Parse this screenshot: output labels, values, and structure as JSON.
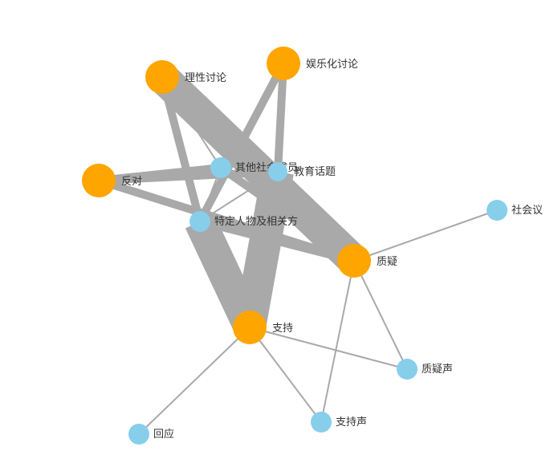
{
  "colors": {
    "major": "#FFA500",
    "minor": "#87CEEB",
    "edge": "#A9A9A9"
  },
  "nodes": [
    {
      "id": "n-lixing",
      "label": "理性讨论",
      "kind": "major"
    },
    {
      "id": "n-yule",
      "label": "娱乐化讨论",
      "kind": "major"
    },
    {
      "id": "n-fandui",
      "label": "反对",
      "kind": "major"
    },
    {
      "id": "n-zhiyi",
      "label": "质疑",
      "kind": "major"
    },
    {
      "id": "n-zhichi",
      "label": "支持",
      "kind": "major"
    },
    {
      "id": "n-qita",
      "label": "其他社会成员",
      "kind": "minor"
    },
    {
      "id": "n-jiaoyu",
      "label": "教育话题",
      "kind": "minor"
    },
    {
      "id": "n-teding",
      "label": "特定人物及相关方",
      "kind": "minor"
    },
    {
      "id": "n-shehui",
      "label": "社会议",
      "kind": "minor"
    },
    {
      "id": "n-zhiyisheng",
      "label": "质疑声",
      "kind": "minor"
    },
    {
      "id": "n-huiying",
      "label": "回应",
      "kind": "minor"
    },
    {
      "id": "n-zhichisheng",
      "label": "支持声",
      "kind": "minor"
    }
  ],
  "edges": [
    {
      "s": "n-teding",
      "t": "n-zhichi",
      "w": 3
    },
    {
      "s": "n-jiaoyu",
      "t": "n-zhichi",
      "w": 3
    },
    {
      "s": "n-lixing",
      "t": "n-zhiyi",
      "w": 3
    },
    {
      "s": "n-fandui",
      "t": "n-zhiyi",
      "w": 2
    },
    {
      "s": "n-fandui",
      "t": "n-qita",
      "w": 2
    },
    {
      "s": "n-fandui",
      "t": "n-jiaoyu",
      "w": 2
    },
    {
      "s": "n-lixing",
      "t": "n-teding",
      "w": 2
    },
    {
      "s": "n-yule",
      "t": "n-teding",
      "w": 2
    },
    {
      "s": "n-yule",
      "t": "n-jiaoyu",
      "w": 2
    },
    {
      "s": "n-qita",
      "t": "n-zhiyi",
      "w": 2
    },
    {
      "s": "n-jiaoyu",
      "t": "n-zhiyi",
      "w": 2
    },
    {
      "s": "n-teding",
      "t": "n-zhiyi",
      "w": 2
    },
    {
      "s": "n-lixing",
      "t": "n-qita",
      "w": 1
    },
    {
      "s": "n-lixing",
      "t": "n-jiaoyu",
      "w": 1
    },
    {
      "s": "n-qita",
      "t": "n-teding",
      "w": 1
    },
    {
      "s": "n-jiaoyu",
      "t": "n-teding",
      "w": 1
    },
    {
      "s": "n-zhichi",
      "t": "n-zhiyisheng",
      "w": 1
    },
    {
      "s": "n-zhiyi",
      "t": "n-zhiyisheng",
      "w": 1
    },
    {
      "s": "n-zhichi",
      "t": "n-huiying",
      "w": 1
    },
    {
      "s": "n-zhichi",
      "t": "n-zhichisheng",
      "w": 1
    },
    {
      "s": "n-zhiyi",
      "t": "n-shehui",
      "w": 1
    },
    {
      "s": "n-zhiyi",
      "t": "n-zhichisheng",
      "w": 1
    }
  ]
}
